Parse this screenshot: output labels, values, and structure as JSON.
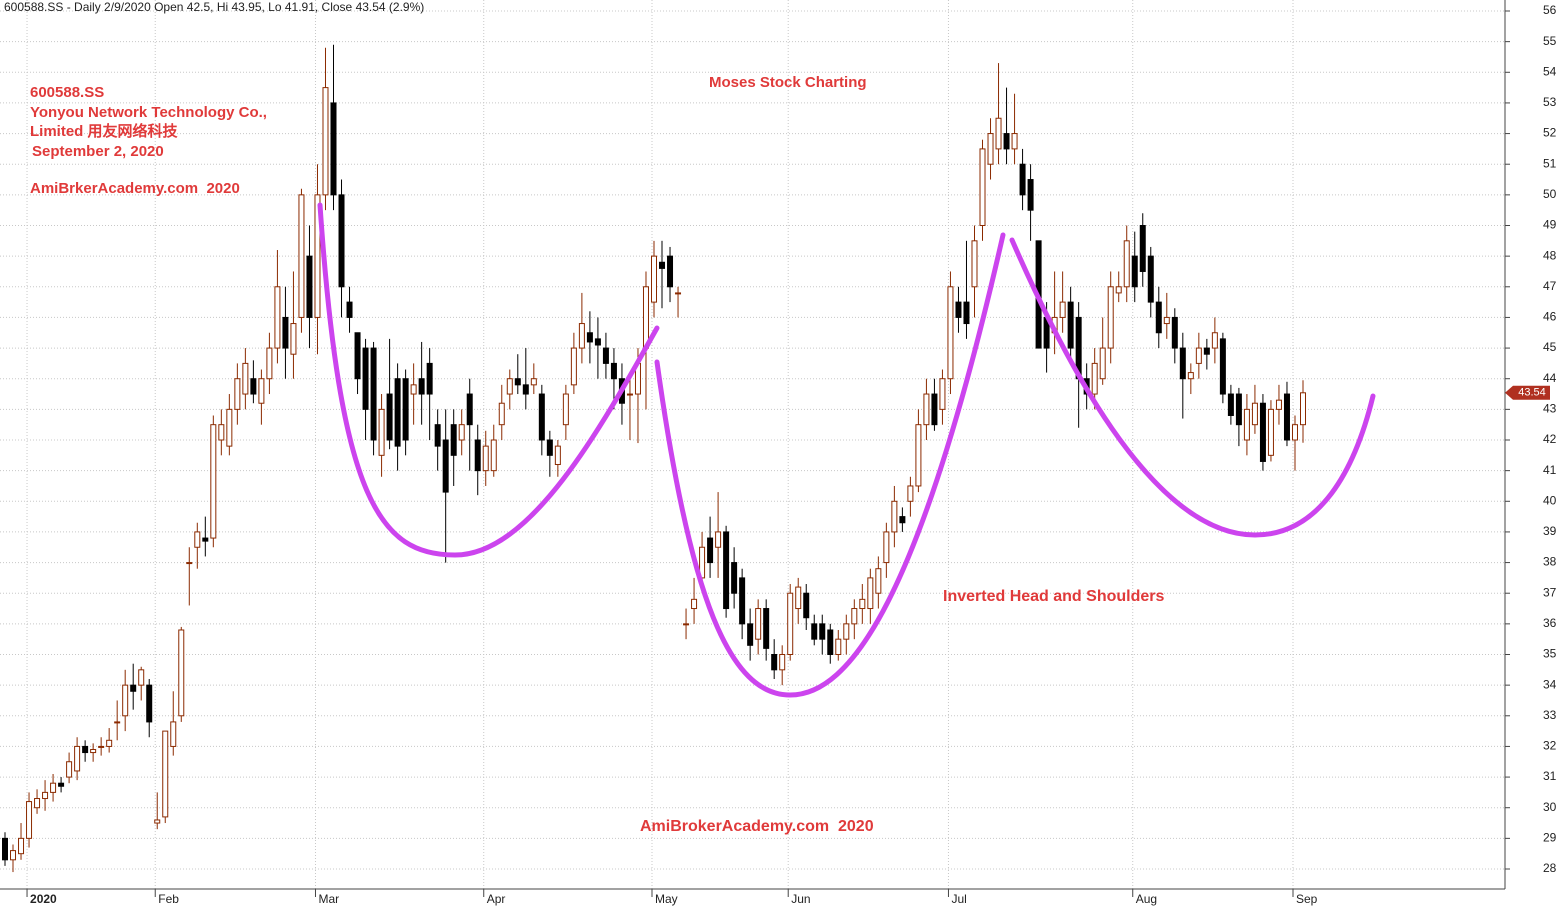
{
  "chart_data": {
    "type": "candlestick",
    "header": "600588.SS - Daily 2/9/2020 Open 42.5, Hi 43.95, Lo 41.91, Close 43.54 (2.9%)",
    "annotations": [
      "600588.SS",
      "Yonyou Network Technology Co.,",
      "Limited 用友网络科技",
      "September 2, 2020",
      "AmiBrkerAcademy.com  2020",
      "Moses Stock Charting",
      "Inverted Head and Shoulders",
      "AmiBrokerAcademy.com  2020"
    ],
    "up_color": "#8b2a00",
    "down_color": "#000000",
    "pattern_color": "#cc44ee",
    "grid": true,
    "ylim": [
      27.5,
      56.4
    ],
    "yticks": [
      28,
      29,
      30,
      31,
      32,
      33,
      34,
      35,
      36,
      37,
      38,
      39,
      40,
      41,
      42,
      43,
      44,
      45,
      46,
      47,
      48,
      49,
      50,
      51,
      52,
      53,
      54,
      55,
      56
    ],
    "categories": [
      null,
      null,
      null,
      "2020",
      null,
      null,
      null,
      null,
      null,
      null,
      null,
      null,
      null,
      null,
      null,
      null,
      null,
      null,
      null,
      "Feb",
      null,
      null,
      null,
      null,
      null,
      null,
      null,
      null,
      null,
      null,
      null,
      null,
      null,
      null,
      null,
      null,
      null,
      null,
      null,
      "Mar",
      null,
      null,
      null,
      null,
      null,
      null,
      null,
      null,
      null,
      null,
      null,
      null,
      null,
      null,
      null,
      null,
      null,
      null,
      null,
      null,
      "Apr",
      null,
      null,
      null,
      null,
      null,
      null,
      null,
      null,
      null,
      null,
      null,
      null,
      null,
      null,
      null,
      null,
      null,
      null,
      null,
      null,
      "May",
      null,
      null,
      null,
      null,
      null,
      null,
      null,
      null,
      null,
      null,
      null,
      null,
      null,
      null,
      null,
      null,
      "Jun",
      null,
      null,
      null,
      null,
      null,
      null,
      null,
      null,
      null,
      null,
      null,
      null,
      null,
      null,
      null,
      null,
      null,
      null,
      null,
      "Jul",
      null,
      null,
      null,
      null,
      null,
      null,
      null,
      null,
      null,
      null,
      null,
      null,
      null,
      null,
      null,
      null,
      null,
      null,
      null,
      null,
      null,
      null,
      "Aug",
      null,
      null,
      null,
      null,
      null,
      null,
      null,
      null,
      null,
      null,
      null,
      null,
      null,
      null,
      null,
      null,
      null,
      null,
      null,
      "Sep",
      null
    ],
    "ohlc": [
      [
        29,
        29.2,
        28.1,
        28.3
      ],
      [
        28.3,
        28.8,
        27.9,
        28.6
      ],
      [
        28.5,
        29.5,
        28.3,
        29
      ],
      [
        29,
        30.5,
        28.7,
        30.2
      ],
      [
        30,
        30.6,
        29.8,
        30.3
      ],
      [
        30.3,
        30.9,
        29.9,
        30.5
      ],
      [
        30.5,
        31.1,
        30.2,
        30.8
      ],
      [
        30.8,
        31,
        30.5,
        30.7
      ],
      [
        31,
        31.8,
        30.8,
        31.5
      ],
      [
        31.2,
        32.3,
        30.9,
        32
      ],
      [
        32,
        32.2,
        31.5,
        31.8
      ],
      [
        31.8,
        32.1,
        31.5,
        31.9
      ],
      [
        32,
        32.3,
        31.7,
        32
      ],
      [
        32,
        32.6,
        31.8,
        32.2
      ],
      [
        32.8,
        33.5,
        32.2,
        32.8
      ],
      [
        33,
        34.5,
        32.5,
        34
      ],
      [
        34,
        34.7,
        33.2,
        33.8
      ],
      [
        34,
        34.6,
        33.5,
        34.5
      ],
      [
        34,
        34.2,
        32.3,
        32.8
      ],
      [
        29.5,
        30.5,
        29.3,
        29.6
      ],
      [
        29.7,
        32.5,
        29.5,
        32.5
      ],
      [
        32,
        33.8,
        31.7,
        32.8
      ],
      [
        33,
        35.9,
        32.8,
        35.8
      ],
      [
        38,
        38.5,
        36.6,
        38
      ],
      [
        38.5,
        39.3,
        37.8,
        39
      ],
      [
        38.8,
        39.5,
        38.2,
        38.7
      ],
      [
        38.8,
        42.8,
        38.5,
        42.5
      ],
      [
        42,
        43,
        41.5,
        42.5
      ],
      [
        41.8,
        43.5,
        41.5,
        43
      ],
      [
        43,
        44.5,
        42.5,
        44
      ],
      [
        43.5,
        45,
        43,
        44.5
      ],
      [
        44,
        44.6,
        43.2,
        43.5
      ],
      [
        43.2,
        44.3,
        42.5,
        44
      ],
      [
        44,
        45.5,
        43.5,
        45
      ],
      [
        45,
        48.2,
        44.5,
        47
      ],
      [
        46,
        47,
        44,
        45
      ],
      [
        44.8,
        47.5,
        44,
        45.8
      ],
      [
        46,
        50.2,
        45.5,
        50
      ],
      [
        48,
        49,
        45,
        46
      ],
      [
        46,
        51,
        44.8,
        50
      ],
      [
        50,
        54.8,
        49.5,
        53.5
      ],
      [
        53,
        54.9,
        49.5,
        50
      ],
      [
        50,
        50.5,
        46,
        47
      ],
      [
        46.5,
        47,
        45.5,
        46
      ],
      [
        45.5,
        45.5,
        43.5,
        44
      ],
      [
        45,
        45.3,
        42,
        43
      ],
      [
        45,
        45.2,
        41.5,
        42
      ],
      [
        41.5,
        43.5,
        40.8,
        43
      ],
      [
        43.5,
        45.3,
        41.7,
        42
      ],
      [
        44,
        44.5,
        41,
        41.8
      ],
      [
        44,
        44.3,
        41.5,
        42
      ],
      [
        43.5,
        44.5,
        42.5,
        43.8
      ],
      [
        44,
        45.2,
        42.5,
        43.5
      ],
      [
        44.5,
        45,
        42,
        43.5
      ],
      [
        42.5,
        43,
        41,
        41.8
      ],
      [
        42,
        43,
        38,
        40.3
      ],
      [
        42.5,
        43,
        40.5,
        41.5
      ],
      [
        42,
        43,
        41.5,
        42.5
      ],
      [
        43.5,
        44,
        41,
        42.5
      ],
      [
        42,
        42.5,
        40.2,
        41
      ],
      [
        41,
        42.3,
        40.5,
        41.8
      ],
      [
        41,
        42.5,
        40.8,
        42
      ],
      [
        42.5,
        43.8,
        42,
        43.2
      ],
      [
        43.5,
        44.3,
        43,
        44
      ],
      [
        44,
        44.8,
        43.5,
        43.8
      ],
      [
        43.8,
        45,
        43,
        43.5
      ],
      [
        43.8,
        44.5,
        43.5,
        44
      ],
      [
        43.5,
        43.8,
        41.5,
        42
      ],
      [
        42,
        42.3,
        40.8,
        41.5
      ],
      [
        41.2,
        42,
        40.8,
        41.8
      ],
      [
        42.5,
        43.8,
        42,
        43.5
      ],
      [
        43.8,
        45.5,
        43.5,
        45
      ],
      [
        45,
        46.8,
        44.5,
        45.8
      ],
      [
        45.5,
        46.2,
        44.5,
        45.2
      ],
      [
        45.3,
        46,
        44,
        45.1
      ],
      [
        45,
        45.5,
        44,
        44.5
      ],
      [
        44.5,
        45,
        43,
        44
      ],
      [
        44,
        44.5,
        42.5,
        43.2
      ],
      [
        43.5,
        44,
        42,
        43.5
      ],
      [
        43.5,
        45,
        41.9,
        44.5
      ],
      [
        45,
        47.5,
        43,
        47
      ],
      [
        46.5,
        48.5,
        46,
        48
      ],
      [
        47.8,
        48.5,
        46.3,
        47.6
      ],
      [
        48,
        48.3,
        46.5,
        47
      ],
      [
        46.8,
        47,
        46,
        46.8
      ],
      [
        36,
        36.5,
        35.5,
        36
      ],
      [
        36.5,
        37.5,
        36,
        36.8
      ],
      [
        37.5,
        39,
        37,
        38.5
      ],
      [
        38.8,
        39.5,
        37.5,
        38
      ],
      [
        38.5,
        40.3,
        37.5,
        39
      ],
      [
        39,
        39.2,
        36.2,
        36.5
      ],
      [
        38,
        38.5,
        36.5,
        37
      ],
      [
        37.5,
        37.8,
        35.5,
        36
      ],
      [
        36,
        36.5,
        34.8,
        35.3
      ],
      [
        35.5,
        36.8,
        35,
        36.5
      ],
      [
        36.5,
        36.8,
        34.8,
        35.2
      ],
      [
        35,
        35.5,
        34.2,
        34.5
      ],
      [
        34.5,
        35.3,
        34,
        35
      ],
      [
        35,
        37.3,
        34.8,
        37
      ],
      [
        36.5,
        37.5,
        36,
        37.2
      ],
      [
        37,
        37.3,
        35.8,
        36.2
      ],
      [
        36,
        36.3,
        35.3,
        35.5
      ],
      [
        36,
        36.3,
        35,
        35.5
      ],
      [
        35.8,
        36,
        34.7,
        35
      ],
      [
        35,
        35.8,
        34.8,
        35.5
      ],
      [
        35.5,
        36.3,
        35,
        36
      ],
      [
        36,
        36.8,
        35.5,
        36.5
      ],
      [
        36.5,
        37.3,
        36,
        36.8
      ],
      [
        36.5,
        37.8,
        36,
        37.5
      ],
      [
        37,
        38.2,
        36.5,
        37.8
      ],
      [
        38,
        39.3,
        37.5,
        39
      ],
      [
        39,
        40.5,
        38.5,
        40
      ],
      [
        39.5,
        39.8,
        39,
        39.3
      ],
      [
        40,
        40.8,
        39.5,
        40.5
      ],
      [
        40.5,
        43,
        40.3,
        42.5
      ],
      [
        42.5,
        44,
        42,
        43.5
      ],
      [
        43.5,
        44,
        42.3,
        42.5
      ],
      [
        43,
        44.3,
        42.5,
        44
      ],
      [
        44,
        47.5,
        43.5,
        47
      ],
      [
        46.5,
        47,
        45.5,
        46
      ],
      [
        46.5,
        48.5,
        45.3,
        45.8
      ],
      [
        47,
        49,
        46,
        48.5
      ],
      [
        49,
        51.8,
        48.5,
        51.5
      ],
      [
        51,
        52.5,
        50.5,
        52
      ],
      [
        51.5,
        54.3,
        51,
        52.5
      ],
      [
        52,
        53.5,
        51,
        51.5
      ],
      [
        51.5,
        53.3,
        51,
        52
      ],
      [
        51,
        51.5,
        49.5,
        50
      ],
      [
        50.5,
        51,
        48.5,
        49.5
      ],
      [
        48.5,
        48.5,
        45,
        45
      ],
      [
        46,
        46.5,
        44.2,
        45
      ],
      [
        45.5,
        47.5,
        44.8,
        46
      ],
      [
        46,
        47.5,
        45.5,
        46.5
      ],
      [
        46.5,
        47,
        44.5,
        45
      ],
      [
        46,
        46.5,
        42.4,
        44
      ],
      [
        44,
        44.5,
        43,
        43.5
      ],
      [
        43.5,
        45,
        43,
        44.5
      ],
      [
        44,
        46,
        43.8,
        45
      ],
      [
        45,
        47.5,
        44.5,
        47
      ],
      [
        46.8,
        47.5,
        46.5,
        47
      ],
      [
        47,
        49,
        46.5,
        48.5
      ],
      [
        48,
        48.8,
        46.5,
        47
      ],
      [
        49,
        49.4,
        47,
        47.5
      ],
      [
        48,
        48.3,
        46,
        46.5
      ],
      [
        46.5,
        47,
        45,
        45.5
      ],
      [
        45.8,
        46.8,
        45.3,
        46
      ],
      [
        46,
        46.3,
        44.5,
        45
      ],
      [
        45,
        45.5,
        42.7,
        44
      ],
      [
        44,
        44.5,
        43.5,
        44.2
      ],
      [
        44.5,
        45.5,
        44,
        45
      ],
      [
        45,
        45.3,
        44.3,
        44.8
      ],
      [
        45,
        46,
        44.5,
        45.5
      ],
      [
        45.3,
        45.5,
        43.2,
        43.5
      ],
      [
        43.5,
        43.8,
        42.5,
        42.8
      ],
      [
        43.5,
        43.7,
        41.8,
        42.5
      ],
      [
        42,
        43.5,
        41.5,
        43
      ],
      [
        42.5,
        43.8,
        42.2,
        43.2
      ],
      [
        43.2,
        43.5,
        41,
        41.3
      ],
      [
        41.5,
        43.3,
        41.3,
        43
      ],
      [
        43,
        43.8,
        42.5,
        43.3
      ],
      [
        43.5,
        43.9,
        41.8,
        42
      ],
      [
        42,
        42.8,
        41,
        42.5
      ],
      [
        42.5,
        43.95,
        41.91,
        43.54
      ]
    ]
  }
}
